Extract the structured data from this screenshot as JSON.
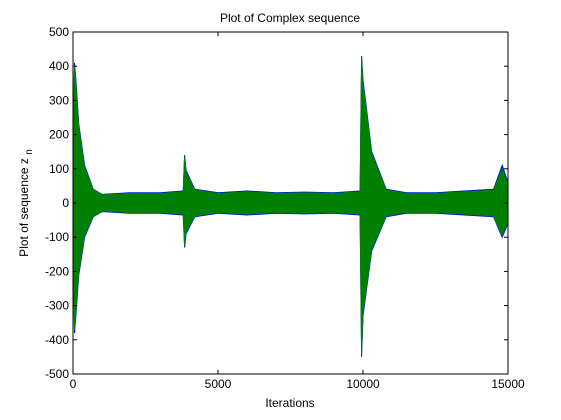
{
  "chart_data": {
    "type": "line",
    "title": "Plot of Complex sequence",
    "xlabel": "Iterations",
    "ylabel": "Plot of sequence z",
    "ylabel_subscript": "n",
    "xlim": [
      0,
      15000
    ],
    "ylim": [
      -500,
      500
    ],
    "xticks": [
      "0",
      "5000",
      "10000",
      "15000"
    ],
    "xtick_values": [
      0,
      5000,
      10000,
      15000
    ],
    "yticks": [
      "500",
      "400",
      "300",
      "200",
      "100",
      "0",
      "-100",
      "-200",
      "-300",
      "-400",
      "-500"
    ],
    "ytick_values": [
      500,
      400,
      300,
      200,
      100,
      0,
      -100,
      -200,
      -300,
      -400,
      -500
    ],
    "grid": false,
    "series": [
      {
        "color": "#0000ff",
        "x": [
          0,
          50,
          100,
          200,
          400,
          700,
          1000,
          2000,
          3000,
          3800,
          3850,
          3900,
          4200,
          5000,
          6000,
          7000,
          8000,
          9000,
          9900,
          9950,
          10000,
          10300,
          10800,
          11500,
          12500,
          13500,
          14500,
          14800,
          15000
        ],
        "upper": [
          30,
          410,
          360,
          230,
          110,
          40,
          25,
          30,
          30,
          35,
          140,
          95,
          40,
          30,
          35,
          30,
          32,
          30,
          35,
          430,
          360,
          150,
          40,
          30,
          30,
          35,
          40,
          110,
          60
        ],
        "lower": [
          -30,
          -380,
          -330,
          -210,
          -100,
          -40,
          -25,
          -30,
          -30,
          -35,
          -130,
          -90,
          -40,
          -30,
          -35,
          -30,
          -32,
          -30,
          -35,
          -450,
          -330,
          -140,
          -40,
          -30,
          -30,
          -35,
          -40,
          -100,
          -60
        ]
      },
      {
        "color": "#008000",
        "x": [
          0,
          50,
          100,
          200,
          400,
          700,
          1000,
          2000,
          3000,
          3800,
          3850,
          3900,
          4200,
          5000,
          6000,
          7000,
          8000,
          9000,
          9900,
          9950,
          10000,
          10300,
          10800,
          11500,
          12500,
          13500,
          14500,
          14800,
          15000
        ],
        "upper": [
          28,
          400,
          350,
          220,
          105,
          38,
          24,
          28,
          28,
          33,
          135,
          90,
          38,
          28,
          33,
          28,
          30,
          28,
          33,
          425,
          350,
          145,
          38,
          28,
          28,
          33,
          38,
          100,
          55
        ],
        "lower": [
          -28,
          -370,
          -320,
          -200,
          -95,
          -38,
          -24,
          -28,
          -28,
          -33,
          -125,
          -85,
          -38,
          -28,
          -33,
          -28,
          -30,
          -28,
          -33,
          -440,
          -320,
          -135,
          -38,
          -28,
          -28,
          -33,
          -38,
          -95,
          -55
        ]
      }
    ]
  }
}
